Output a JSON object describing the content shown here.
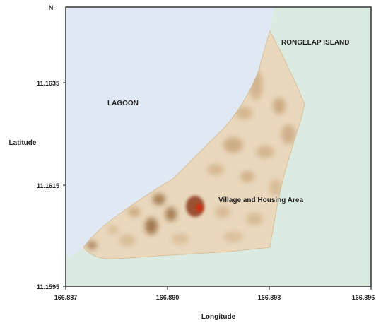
{
  "map": {
    "north_label": "N",
    "axes": {
      "ylabel": "Latitude",
      "xlabel": "Longitude",
      "y_ticks": [
        "11.1635",
        "11.1615",
        "11.1595"
      ],
      "x_ticks": [
        "166.887",
        "166.890",
        "166.893",
        "166.896"
      ]
    },
    "labels": {
      "lagoon": "LAGOON",
      "island": "RONGELAP ISLAND",
      "village": "Village and Housing Area"
    },
    "colors": {
      "lagoon": "#dfe8f3",
      "ocean": "#dcebe1",
      "land": "#ead8bd",
      "land_shading": "#9a6e40",
      "hotspot": "#8b3a1a",
      "hotspot_center": "#d42a10"
    }
  }
}
